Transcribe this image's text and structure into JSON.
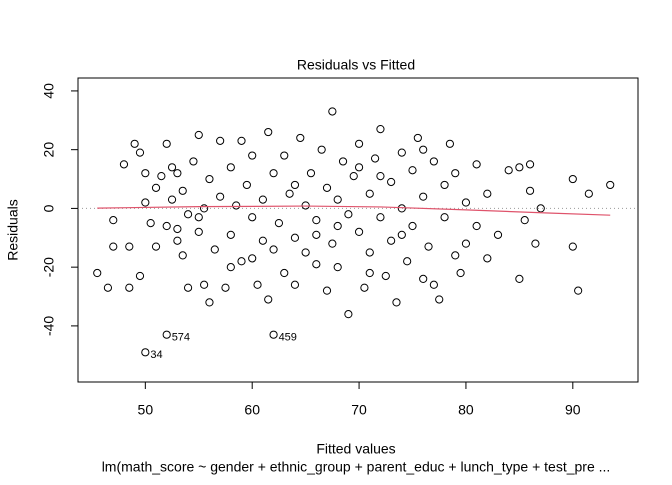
{
  "chart_data": {
    "type": "scatter",
    "title": "Residuals vs Fitted",
    "x_label": "Fitted values",
    "y_label": "Residuals",
    "subtitle": "lm(math_score ~ gender + ethnic_group + parent_educ + lunch_type + test_pre ...",
    "xlim": [
      43.7,
      96.1
    ],
    "ylim": [
      -59.1,
      44.4
    ],
    "xticks": [
      50,
      60,
      70,
      80,
      90
    ],
    "yticks": [
      -40,
      -20,
      0,
      20,
      40
    ],
    "color": "#000000",
    "x": [
      45.5,
      46.5,
      47,
      47,
      48,
      48.5,
      48.5,
      49,
      49.5,
      49.5,
      50,
      50,
      50,
      50.5,
      51,
      51,
      51.5,
      52,
      52,
      52,
      52.5,
      52.5,
      53,
      53,
      53.5,
      53.5,
      54,
      54,
      54.5,
      55,
      55,
      55.5,
      55.5,
      56,
      56,
      56.5,
      57,
      57,
      57.5,
      58,
      58,
      58.5,
      59,
      59,
      59.5,
      60,
      60,
      60.5,
      61,
      61,
      61.5,
      61.5,
      62,
      62,
      62.5,
      63,
      63,
      63.5,
      64,
      64,
      64.5,
      65,
      65,
      65.5,
      66,
      66,
      66.5,
      67,
      67,
      67.5,
      67.5,
      68,
      68,
      68.5,
      69,
      69,
      69.5,
      70,
      70,
      70.5,
      71,
      71,
      71.5,
      72,
      72,
      72.5,
      73,
      73,
      73.5,
      74,
      74,
      74.5,
      75,
      75,
      75.5,
      76,
      76,
      76.5,
      77,
      77,
      77.5,
      78,
      78,
      78.5,
      79,
      79,
      79.5,
      80,
      80,
      81,
      81,
      82,
      82,
      83,
      84,
      85,
      85,
      85.5,
      86,
      86,
      86.5,
      87,
      90,
      90,
      90.5,
      91.5,
      93.5,
      60,
      66,
      70,
      72,
      55,
      64,
      68,
      74,
      58,
      62,
      71,
      76,
      53
    ],
    "values": [
      -22,
      -27,
      -4,
      -13,
      15,
      -27,
      -13,
      22,
      19,
      -23,
      12,
      2,
      -49,
      -5,
      7,
      -13,
      11,
      22,
      -43,
      -6,
      14,
      3,
      -11,
      12,
      -16,
      6,
      -27,
      -2,
      16,
      25,
      -8,
      0,
      -26,
      -32,
      10,
      -14,
      23,
      4,
      -27,
      14,
      -9,
      1,
      -18,
      23,
      8,
      -3,
      18,
      -26,
      -11,
      3,
      -31,
      26,
      -43,
      12,
      -5,
      -22,
      18,
      5,
      -26,
      -10,
      24,
      1,
      -15,
      12,
      -4,
      -19,
      20,
      7,
      -28,
      -12,
      33,
      3,
      -20,
      16,
      -36,
      -2,
      11,
      22,
      -8,
      -27,
      5,
      -15,
      17,
      -3,
      27,
      -23,
      9,
      -11,
      -32,
      19,
      0,
      -18,
      13,
      -6,
      24,
      -24,
      4,
      -13,
      16,
      -26,
      -31,
      8,
      -3,
      22,
      -16,
      12,
      -22,
      2,
      -12,
      15,
      -6,
      5,
      -17,
      -9,
      13,
      -24,
      14,
      -4,
      6,
      15,
      -12,
      0,
      10,
      -13,
      -28,
      5,
      8,
      -17,
      -9,
      14,
      11,
      -3,
      8,
      -6,
      -9,
      -20,
      -14,
      -22,
      20,
      -7
    ],
    "annotations": [
      {
        "text": "574",
        "x": 52,
        "y": -43
      },
      {
        "text": "34",
        "x": 50,
        "y": -49
      },
      {
        "text": "459",
        "x": 62,
        "y": -43
      }
    ],
    "smooth": {
      "color": "#DF536B",
      "x": [
        45.5,
        55,
        65,
        72,
        80,
        88,
        93.5
      ],
      "values": [
        0.1,
        0.6,
        0.8,
        0.5,
        -0.5,
        -1.6,
        -2.3
      ]
    },
    "hline": 0
  }
}
